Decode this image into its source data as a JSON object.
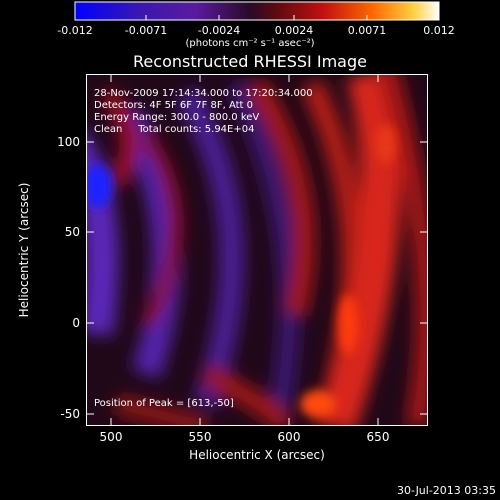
{
  "colorbar": {
    "ticks": [
      "-0.012",
      "-0.0071",
      "-0.0024",
      "0.0024",
      "0.0071",
      "0.012"
    ],
    "units": "(photons cm⁻² s⁻¹ asec⁻²)",
    "range": [
      -0.012,
      0.012
    ]
  },
  "title": "Reconstructed RHESSI Image",
  "info_lines": [
    "28-Nov-2009 17:14:34.000 to 17:20:34.000",
    "Detectors: 4F 5F 6F 7F 8F, Att 0",
    "Energy Range: 300.0 - 800.0 keV",
    "Clean     Total counts: 5.94E+04"
  ],
  "peak_text": "Position of Peak = [613,-50]",
  "x_axis": {
    "label": "Heliocentric X (arcsec)",
    "ticks": [
      "500",
      "550",
      "600",
      "650"
    ],
    "range": [
      485,
      676
    ]
  },
  "y_axis": {
    "label": "Heliocentric Y (arcsec)",
    "ticks": [
      "100",
      "50",
      "0",
      "-50"
    ],
    "range": [
      -55,
      124
    ]
  },
  "timestamp": "30-Jul-2013 03:35",
  "colors": {
    "background": "#000000",
    "text": "#ffffff"
  }
}
